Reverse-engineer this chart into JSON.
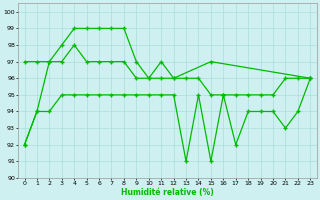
{
  "xlabel": "Humidité relative (%)",
  "xlim": [
    -0.5,
    23.5
  ],
  "ylim": [
    90,
    100.5
  ],
  "yticks": [
    90,
    91,
    92,
    93,
    94,
    95,
    96,
    97,
    98,
    99,
    100
  ],
  "xticks": [
    0,
    1,
    2,
    3,
    4,
    5,
    6,
    7,
    8,
    9,
    10,
    11,
    12,
    13,
    14,
    15,
    16,
    17,
    18,
    19,
    20,
    21,
    22,
    23
  ],
  "bg_color": "#cff0f0",
  "grid_color": "#aadddd",
  "line_color": "#00bb00",
  "line1_x": [
    0,
    1,
    2,
    3,
    4,
    5,
    6,
    7,
    8,
    9,
    10,
    11,
    12,
    15,
    23
  ],
  "line1_y": [
    92,
    94,
    97,
    98,
    99,
    99,
    99,
    99,
    99,
    97,
    96,
    97,
    96,
    97,
    96
  ],
  "line2_x": [
    0,
    1,
    2,
    3,
    4,
    5,
    6,
    7,
    8,
    9,
    10,
    11,
    12,
    13,
    14,
    15,
    16,
    17,
    18,
    19,
    20,
    21,
    22,
    23
  ],
  "line2_y": [
    97,
    97,
    97,
    97,
    98,
    97,
    97,
    97,
    97,
    96,
    96,
    96,
    96,
    96,
    96,
    95,
    95,
    95,
    95,
    95,
    95,
    96,
    96,
    96
  ],
  "line3_x": [
    0,
    1,
    2,
    3,
    4,
    5,
    6,
    7,
    8,
    9,
    10,
    11,
    12,
    13,
    14,
    15,
    16,
    17,
    18,
    19,
    20,
    21,
    22,
    23
  ],
  "line3_y": [
    92,
    94,
    94,
    95,
    95,
    95,
    95,
    95,
    95,
    95,
    95,
    95,
    95,
    91,
    95,
    91,
    95,
    92,
    94,
    94,
    94,
    93,
    94,
    96
  ]
}
